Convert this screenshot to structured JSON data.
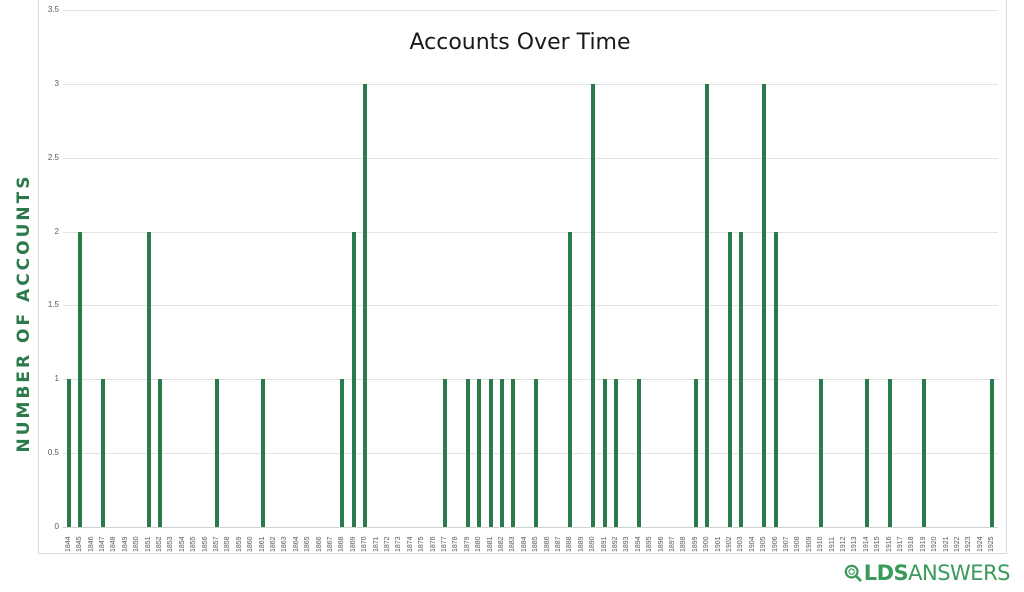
{
  "chart_data": {
    "type": "bar",
    "title": "Accounts Over Time",
    "xlabel": "",
    "ylabel": "NUMBER OF ACCOUNTS",
    "ylim": [
      0,
      3.5
    ],
    "yticks": [
      "0",
      "0.5",
      "1",
      "1.5",
      "2",
      "2.5",
      "3",
      "3.5"
    ],
    "grid": true,
    "legend": "none",
    "bar_color": "#2a7a4b",
    "categories": [
      "1844",
      "1845",
      "1846",
      "1847",
      "1848",
      "1849",
      "1850",
      "1851",
      "1852",
      "1853",
      "1854",
      "1855",
      "1856",
      "1857",
      "1858",
      "1859",
      "1860",
      "1861",
      "1862",
      "1863",
      "1864",
      "1865",
      "1866",
      "1867",
      "1868",
      "1869",
      "1870",
      "1871",
      "1872",
      "1873",
      "1874",
      "1875",
      "1876",
      "1877",
      "1878",
      "1879",
      "1880",
      "1881",
      "1882",
      "1883",
      "1884",
      "1885",
      "1886",
      "1887",
      "1888",
      "1889",
      "1890",
      "1891",
      "1892",
      "1893",
      "1894",
      "1895",
      "1896",
      "1897",
      "1898",
      "1899",
      "1900",
      "1901",
      "1902",
      "1903",
      "1904",
      "1905",
      "1906",
      "1907",
      "1908",
      "1909",
      "1910",
      "1911",
      "1912",
      "1913",
      "1914",
      "1915",
      "1916",
      "1917",
      "1918",
      "1919",
      "1920",
      "1921",
      "1922",
      "1923",
      "1924",
      "1925"
    ],
    "values": [
      1,
      2,
      0,
      1,
      0,
      0,
      0,
      2,
      1,
      0,
      0,
      0,
      0,
      1,
      0,
      0,
      0,
      1,
      0,
      0,
      0,
      0,
      0,
      0,
      1,
      2,
      3,
      0,
      0,
      0,
      0,
      0,
      0,
      1,
      0,
      1,
      1,
      1,
      1,
      1,
      0,
      1,
      0,
      0,
      2,
      0,
      3,
      1,
      1,
      0,
      1,
      0,
      0,
      0,
      0,
      1,
      3,
      0,
      2,
      2,
      0,
      3,
      2,
      0,
      0,
      0,
      1,
      0,
      0,
      0,
      1,
      0,
      1,
      0,
      0,
      1,
      0,
      0,
      0,
      0,
      0,
      1
    ]
  },
  "branding": {
    "logo_bold": "LDS",
    "logo_light": "ANSWERS",
    "logo_color": "#3a9a5a"
  }
}
